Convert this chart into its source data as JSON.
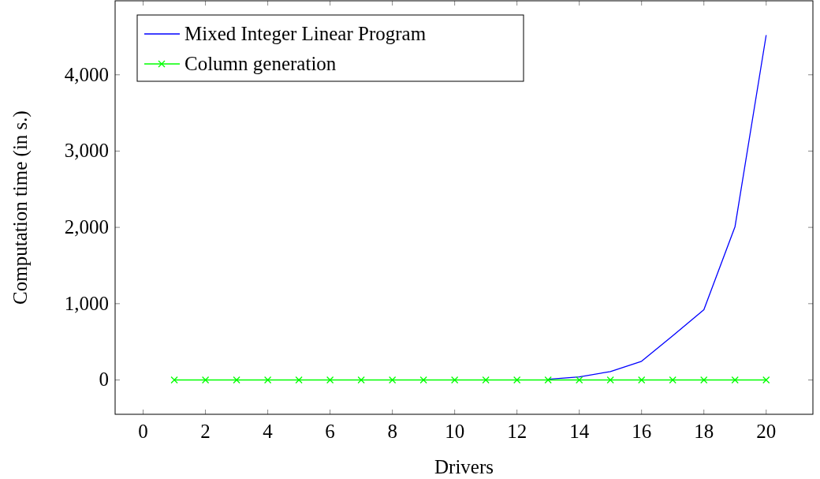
{
  "chart_data": {
    "type": "line",
    "xlabel": "Drivers",
    "ylabel": "Computation time (in s.)",
    "x": [
      1,
      2,
      3,
      4,
      5,
      6,
      7,
      8,
      9,
      10,
      11,
      12,
      13,
      14,
      15,
      16,
      17,
      18,
      19,
      20
    ],
    "series": [
      {
        "name": "Mixed Integer Linear Program",
        "color": "#0000ff",
        "marker": "none",
        "values": [
          null,
          null,
          null,
          null,
          null,
          null,
          null,
          null,
          null,
          null,
          null,
          null,
          10,
          40,
          110,
          245,
          580,
          920,
          2010,
          4520
        ]
      },
      {
        "name": "Column generation",
        "color": "#00ff00",
        "marker": "cross",
        "values": [
          0,
          0,
          0,
          0,
          0,
          0,
          0,
          0,
          0,
          0,
          0,
          0,
          0,
          0,
          0,
          0,
          0,
          0,
          0,
          0
        ]
      }
    ],
    "xlim": [
      -0.9,
      21.5
    ],
    "ylim": [
      -450,
      4970
    ],
    "xticks": [
      0,
      2,
      4,
      6,
      8,
      10,
      12,
      14,
      16,
      18,
      20
    ],
    "yticks": [
      {
        "value": 0,
        "label": "0"
      },
      {
        "value": 1000,
        "label": "1,000"
      },
      {
        "value": 2000,
        "label": "2,000"
      },
      {
        "value": 3000,
        "label": "3,000"
      },
      {
        "value": 4000,
        "label": "4,000"
      }
    ],
    "legend": "top left",
    "line_style": "solid"
  }
}
